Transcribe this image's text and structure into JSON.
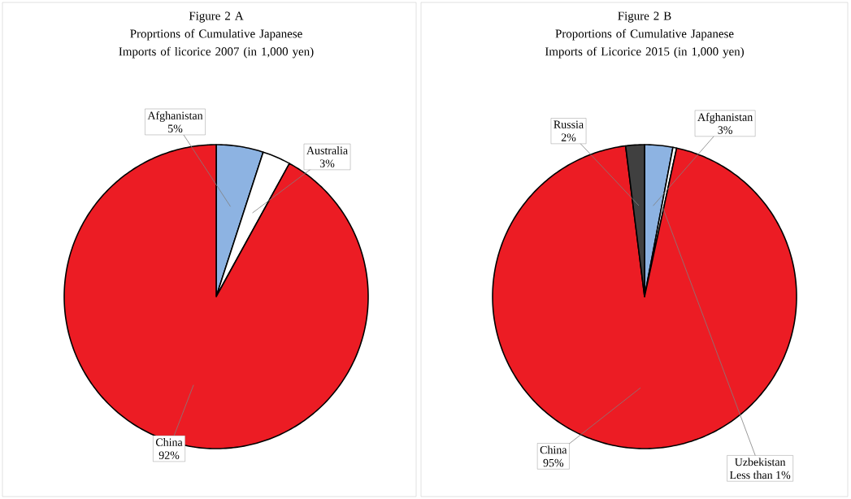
{
  "chart_data": [
    {
      "type": "pie",
      "title": "Figure 2 A",
      "subtitle": "Proprtions of Cumulative Japanese Imports of licorice 2007 (in 1,000 yen)",
      "categories": [
        "Afghanistan",
        "Australia",
        "China"
      ],
      "values": [
        5,
        3,
        92
      ],
      "value_labels": [
        "5%",
        "3%",
        "92%"
      ],
      "colors": [
        "#8db3e2",
        "#ffffff",
        "#ec1c24"
      ]
    },
    {
      "type": "pie",
      "title": "Figure 2 B",
      "subtitle": "Proportions of Cumulative Japanese Imports of Licorice 2015 (in 1,000 yen)",
      "categories": [
        "Afghanistan",
        "Uzbekistan",
        "China",
        "Russia"
      ],
      "values": [
        3,
        0.4,
        95,
        2
      ],
      "value_labels": [
        "3%",
        "Less than 1%",
        "95%",
        "2%"
      ],
      "colors": [
        "#8db3e2",
        "#ffffff",
        "#ec1c24",
        "#404040"
      ]
    }
  ]
}
